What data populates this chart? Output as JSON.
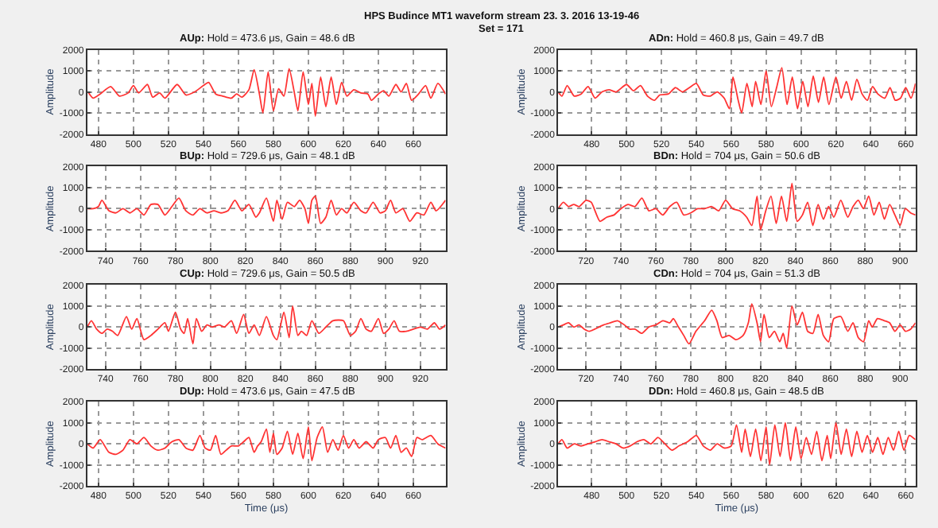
{
  "chart_data": [
    {
      "type": "line",
      "title": "AUp: Hold = 473.6 μs, Gain = 48.6 dB",
      "ylabel": "Amplitude",
      "annotations": [
        "HPS Budince MT1 waveform stream 23. 3. 2016 13-19-46",
        "Set = 171"
      ],
      "xlim": [
        473.6,
        678.4
      ],
      "xticks": [
        480,
        500,
        520,
        540,
        560,
        580,
        600,
        620,
        640,
        660
      ],
      "ylim": [
        -2000,
        2000
      ],
      "yticks": [
        -2000,
        -1000,
        0,
        1000,
        2000
      ],
      "grid": true,
      "line_style": "solid",
      "series": [
        {
          "color": "#ff3333",
          "x": [
            474,
            477,
            481,
            487,
            492,
            497,
            500,
            503,
            508,
            511,
            515,
            518,
            525,
            530,
            535,
            540,
            543,
            547,
            551,
            556,
            559,
            562,
            566,
            569,
            572,
            574,
            577,
            580,
            583,
            586,
            589,
            592,
            594,
            597,
            600,
            602,
            604,
            607,
            610,
            613,
            616,
            619,
            622,
            626,
            630,
            634,
            636,
            640,
            643,
            646,
            650,
            653,
            656,
            659,
            663,
            667,
            670,
            674,
            678.4
          ],
          "values": [
            0,
            -300,
            -100,
            250,
            -200,
            -50,
            300,
            -50,
            350,
            -250,
            -50,
            -300,
            350,
            -150,
            0,
            300,
            450,
            -100,
            -200,
            -300,
            -100,
            -250,
            100,
            1050,
            -100,
            -1000,
            950,
            -900,
            150,
            -200,
            1100,
            -50,
            -900,
            950,
            -600,
            400,
            -1150,
            700,
            -700,
            700,
            -600,
            450,
            -200,
            100,
            -50,
            -100,
            -400,
            -100,
            50,
            -200,
            350,
            0,
            400,
            -400,
            -100,
            300,
            -300,
            400,
            -100
          ]
        }
      ]
    },
    {
      "type": "line",
      "title": "ADn: Hold = 460.8 μs, Gain = 49.7 dB",
      "ylabel": "Amplitude",
      "xlim": [
        460.8,
        665.6
      ],
      "xticks": [
        480,
        500,
        520,
        540,
        560,
        580,
        600,
        620,
        640,
        660
      ],
      "ylim": [
        -2000,
        2000
      ],
      "yticks": [
        -2000,
        -1000,
        0,
        1000,
        2000
      ],
      "grid": true,
      "line_style": "solid",
      "series": [
        {
          "color": "#ff3333",
          "x": [
            460.8,
            463,
            466,
            470,
            474,
            478,
            482,
            486,
            490,
            494,
            500,
            504,
            508,
            512,
            516,
            519,
            524,
            528,
            532,
            536,
            540,
            544,
            548,
            552,
            556,
            559,
            561,
            564,
            566,
            569,
            572,
            574,
            577,
            580,
            583,
            586,
            589,
            592,
            595,
            598,
            601,
            604,
            607,
            610,
            613,
            616,
            620,
            623,
            626,
            629,
            632,
            635,
            638,
            641,
            644,
            648,
            651,
            654,
            657,
            660,
            663,
            665.6
          ],
          "values": [
            0,
            -200,
            300,
            -200,
            -100,
            250,
            -300,
            0,
            100,
            0,
            350,
            50,
            300,
            -200,
            -400,
            -150,
            -100,
            200,
            0,
            200,
            400,
            -150,
            -200,
            0,
            -300,
            -800,
            700,
            -400,
            -1000,
            400,
            -700,
            500,
            -600,
            1000,
            -700,
            200,
            1150,
            -600,
            700,
            -800,
            500,
            -700,
            750,
            -500,
            700,
            -600,
            700,
            -300,
            500,
            -400,
            600,
            -100,
            -400,
            250,
            -100,
            -300,
            200,
            -400,
            -300,
            200,
            -300,
            400
          ]
        }
      ]
    },
    {
      "type": "line",
      "title": "BUp: Hold = 729.6 μs, Gain = 48.1 dB",
      "ylabel": "Amplitude",
      "xlim": [
        729.6,
        934.4
      ],
      "xticks": [
        740,
        760,
        780,
        800,
        820,
        840,
        860,
        880,
        900,
        920
      ],
      "ylim": [
        -2000,
        2000
      ],
      "yticks": [
        -2000,
        -1000,
        0,
        1000,
        2000
      ],
      "grid": true,
      "line_style": "solid",
      "series": [
        {
          "color": "#ff3333",
          "x": [
            729.6,
            733,
            736,
            738,
            742,
            746,
            750,
            754,
            758,
            762,
            766,
            770,
            774,
            778,
            782,
            786,
            790,
            794,
            798,
            802,
            806,
            810,
            814,
            818,
            822,
            826,
            828,
            832,
            836,
            838,
            841,
            844,
            848,
            851,
            854,
            856,
            858,
            860,
            863,
            866,
            869,
            872,
            875,
            878,
            882,
            886,
            889,
            893,
            897,
            900,
            903,
            906,
            910,
            914,
            918,
            922,
            926,
            929,
            934.4
          ],
          "values": [
            0,
            0,
            100,
            400,
            -100,
            -200,
            0,
            -200,
            0,
            -300,
            200,
            200,
            -300,
            100,
            500,
            -100,
            -300,
            0,
            -200,
            -100,
            -200,
            -100,
            400,
            -100,
            200,
            -400,
            -200,
            500,
            -600,
            400,
            -500,
            300,
            100,
            400,
            0,
            -700,
            400,
            600,
            -700,
            -400,
            400,
            -300,
            0,
            -200,
            300,
            -100,
            -200,
            300,
            -200,
            -100,
            400,
            -200,
            0,
            -600,
            -200,
            -300,
            300,
            -100,
            400
          ]
        }
      ]
    },
    {
      "type": "line",
      "title": "BDn: Hold = 704 μs, Gain = 50.6 dB",
      "ylabel": "Amplitude",
      "xlim": [
        704,
        908.8
      ],
      "xticks": [
        720,
        740,
        760,
        780,
        800,
        820,
        840,
        860,
        880,
        900
      ],
      "ylim": [
        -2000,
        2000
      ],
      "yticks": [
        -2000,
        -1000,
        0,
        1000,
        2000
      ],
      "grid": true,
      "line_style": "solid",
      "series": [
        {
          "color": "#ff3333",
          "x": [
            704,
            707,
            710,
            713,
            716,
            720,
            723,
            728,
            732,
            736,
            740,
            744,
            748,
            752,
            756,
            760,
            764,
            768,
            772,
            776,
            780,
            784,
            788,
            792,
            796,
            800,
            804,
            808,
            812,
            815,
            818,
            820,
            823,
            826,
            829,
            832,
            835,
            838,
            841,
            844,
            847,
            850,
            853,
            856,
            859,
            862,
            866,
            870,
            873,
            876,
            879,
            882,
            885,
            888,
            891,
            894,
            897,
            900,
            903,
            906,
            908.8
          ],
          "values": [
            0,
            300,
            100,
            200,
            100,
            400,
            300,
            -600,
            -400,
            -300,
            0,
            200,
            100,
            500,
            -100,
            0,
            -300,
            100,
            300,
            -300,
            -200,
            0,
            0,
            100,
            -100,
            400,
            0,
            -100,
            -400,
            -800,
            600,
            -1000,
            -100,
            600,
            -700,
            600,
            -600,
            1200,
            -600,
            -300,
            300,
            -800,
            200,
            -500,
            100,
            -400,
            400,
            -400,
            100,
            400,
            0,
            600,
            -300,
            300,
            -500,
            200,
            -300,
            -800,
            0,
            -200,
            -300
          ]
        }
      ]
    },
    {
      "type": "line",
      "title": "CUp: Hold = 729.6 μs, Gain = 50.5 dB",
      "ylabel": "Amplitude",
      "xlim": [
        729.6,
        934.4
      ],
      "xticks": [
        740,
        760,
        780,
        800,
        820,
        840,
        860,
        880,
        900,
        920
      ],
      "ylim": [
        -2000,
        2000
      ],
      "yticks": [
        -2000,
        -1000,
        0,
        1000,
        2000
      ],
      "grid": true,
      "line_style": "solid",
      "series": [
        {
          "color": "#ff3333",
          "x": [
            729.6,
            732,
            735,
            738,
            741,
            744,
            747,
            752,
            755,
            758,
            762,
            766,
            770,
            774,
            776,
            780,
            783,
            785,
            787,
            790,
            792,
            795,
            798,
            801,
            805,
            808,
            812,
            815,
            819,
            822,
            825,
            828,
            832,
            836,
            838,
            842,
            845,
            847,
            850,
            852,
            855,
            858,
            862,
            866,
            870,
            876,
            880,
            883,
            886,
            889,
            892,
            896,
            899,
            902,
            905,
            908,
            912,
            916,
            920,
            924,
            928,
            931,
            934.4
          ],
          "values": [
            0,
            300,
            -100,
            -300,
            -100,
            -200,
            -400,
            500,
            -100,
            400,
            -600,
            -400,
            -100,
            200,
            -200,
            700,
            -100,
            -300,
            400,
            -800,
            400,
            -200,
            100,
            0,
            100,
            0,
            300,
            -300,
            600,
            -300,
            100,
            -400,
            500,
            -400,
            -600,
            700,
            -500,
            1000,
            -400,
            -200,
            -400,
            300,
            -300,
            0,
            300,
            300,
            -400,
            -200,
            400,
            -100,
            -200,
            400,
            -300,
            -100,
            300,
            -200,
            -200,
            -100,
            0,
            -100,
            200,
            -100,
            100
          ]
        }
      ]
    },
    {
      "type": "line",
      "title": "CDn: Hold = 704 μs, Gain = 51.3 dB",
      "ylabel": "Amplitude",
      "xlim": [
        704,
        908.8
      ],
      "xticks": [
        720,
        740,
        760,
        780,
        800,
        820,
        840,
        860,
        880,
        900
      ],
      "ylim": [
        -2000,
        2000
      ],
      "yticks": [
        -2000,
        -1000,
        0,
        1000,
        2000
      ],
      "grid": true,
      "line_style": "solid",
      "series": [
        {
          "color": "#ff3333",
          "x": [
            704,
            707,
            710,
            713,
            716,
            719,
            722,
            725,
            730,
            734,
            738,
            742,
            745,
            748,
            752,
            756,
            760,
            764,
            768,
            770,
            773,
            776,
            779,
            783,
            788,
            792,
            795,
            798,
            802,
            806,
            810,
            813,
            815,
            818,
            820,
            822,
            825,
            828,
            831,
            833,
            835,
            838,
            841,
            844,
            847,
            850,
            853,
            856,
            859,
            862,
            866,
            870,
            873,
            876,
            879,
            882,
            884,
            887,
            891,
            894,
            897,
            900,
            903,
            906,
            908.8
          ],
          "values": [
            0,
            100,
            200,
            0,
            100,
            -100,
            -200,
            -100,
            100,
            200,
            300,
            100,
            -100,
            -100,
            -300,
            0,
            100,
            300,
            200,
            400,
            0,
            -400,
            -800,
            -200,
            300,
            800,
            300,
            -500,
            -400,
            -600,
            -400,
            200,
            1100,
            200,
            -700,
            600,
            -500,
            -200,
            -700,
            -300,
            -1000,
            1000,
            100,
            700,
            -200,
            -300,
            600,
            -400,
            -700,
            400,
            500,
            -200,
            200,
            -500,
            -700,
            300,
            0,
            400,
            300,
            200,
            -200,
            100,
            -200,
            -100,
            200
          ]
        }
      ]
    },
    {
      "type": "line",
      "title": "DUp: Hold = 473.6 μs, Gain = 47.5 dB",
      "xlabel": "Time (μs)",
      "ylabel": "Amplitude",
      "xlim": [
        473.6,
        678.4
      ],
      "xticks": [
        480,
        500,
        520,
        540,
        560,
        580,
        600,
        620,
        640,
        660
      ],
      "ylim": [
        -2000,
        2000
      ],
      "yticks": [
        -2000,
        -1000,
        0,
        1000,
        2000
      ],
      "grid": true,
      "line_style": "solid",
      "series": [
        {
          "color": "#ff3333",
          "x": [
            473.6,
            477,
            481,
            486,
            490,
            494,
            498,
            502,
            506,
            510,
            514,
            518,
            522,
            526,
            530,
            534,
            538,
            541,
            544,
            547,
            550,
            553,
            556,
            560,
            563,
            566,
            569,
            571,
            573,
            576,
            578,
            580,
            582,
            585,
            588,
            591,
            594,
            597,
            600,
            602,
            605,
            608,
            611,
            614,
            617,
            620,
            623,
            626,
            629,
            633,
            637,
            640,
            644,
            647,
            650,
            653,
            656,
            659,
            662,
            665,
            670,
            674,
            678.4
          ],
          "values": [
            0,
            -200,
            200,
            -400,
            -500,
            -300,
            200,
            0,
            300,
            -100,
            -300,
            -200,
            100,
            200,
            -200,
            -300,
            400,
            -200,
            -300,
            400,
            -500,
            -300,
            -100,
            -100,
            100,
            300,
            -400,
            -100,
            100,
            700,
            -400,
            500,
            -500,
            -200,
            600,
            -500,
            500,
            -700,
            800,
            -800,
            300,
            800,
            -400,
            200,
            -300,
            400,
            -200,
            200,
            -200,
            100,
            -200,
            200,
            300,
            -200,
            400,
            -400,
            -200,
            -600,
            300,
            200,
            400,
            0,
            -200
          ]
        }
      ]
    },
    {
      "type": "line",
      "title": "DDn: Hold = 460.8 μs, Gain = 48.5 dB",
      "xlabel": "Time (μs)",
      "ylabel": "Amplitude",
      "xlim": [
        460.8,
        665.6
      ],
      "xticks": [
        480,
        500,
        520,
        540,
        560,
        580,
        600,
        620,
        640,
        660
      ],
      "ylim": [
        -2000,
        2000
      ],
      "yticks": [
        -2000,
        -1000,
        0,
        1000,
        2000
      ],
      "grid": true,
      "line_style": "solid",
      "series": [
        {
          "color": "#ff3333",
          "x": [
            460.8,
            463,
            466,
            470,
            474,
            478,
            482,
            486,
            490,
            494,
            498,
            502,
            506,
            510,
            514,
            518,
            522,
            526,
            530,
            535,
            540,
            544,
            548,
            552,
            556,
            560,
            563,
            566,
            568,
            571,
            574,
            577,
            580,
            582,
            585,
            588,
            591,
            594,
            597,
            600,
            603,
            606,
            609,
            612,
            615,
            617,
            620,
            623,
            626,
            629,
            632,
            635,
            638,
            641,
            644,
            647,
            650,
            653,
            656,
            659,
            662,
            665.6
          ],
          "values": [
            0,
            200,
            -200,
            0,
            -100,
            0,
            100,
            200,
            100,
            0,
            -200,
            -100,
            100,
            200,
            0,
            300,
            0,
            -300,
            -100,
            100,
            400,
            -100,
            -300,
            0,
            -200,
            -100,
            900,
            -400,
            700,
            -600,
            700,
            -800,
            800,
            -1000,
            900,
            -600,
            1000,
            -800,
            800,
            -700,
            300,
            -500,
            600,
            -800,
            400,
            -700,
            1000,
            -500,
            700,
            -600,
            600,
            -400,
            400,
            -400,
            300,
            -500,
            300,
            -300,
            600,
            -300,
            400,
            200
          ]
        }
      ]
    }
  ]
}
